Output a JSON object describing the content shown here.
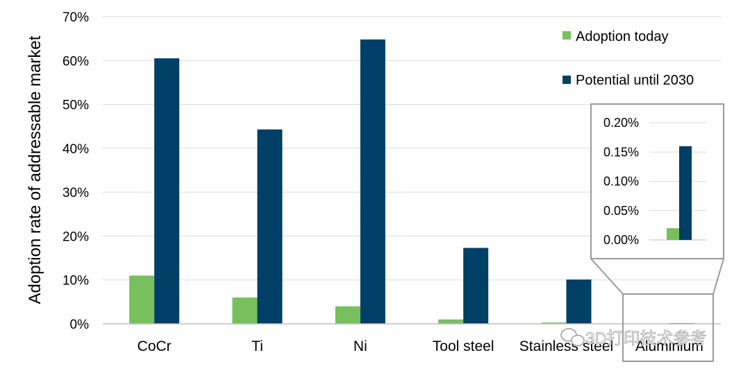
{
  "chart_data": {
    "type": "bar",
    "ylabel": "Adoption rate of addressable market",
    "xlabel": "",
    "ylim": [
      0,
      70
    ],
    "y_ticks": [
      "0%",
      "10%",
      "20%",
      "30%",
      "40%",
      "50%",
      "60%",
      "70%"
    ],
    "categories": [
      "CoCr",
      "Ti",
      "Ni",
      "Tool steel",
      "Stainless steel",
      "Aluminium"
    ],
    "series": [
      {
        "name": "Adoption today",
        "values": [
          11,
          6,
          4,
          1,
          0.3,
          0.02
        ],
        "color": "#77c05d"
      },
      {
        "name": "Potential until 2030",
        "values": [
          60.5,
          44.3,
          64.8,
          17.3,
          10.1,
          0.16
        ],
        "color": "#003f66"
      }
    ],
    "legend": "top-right",
    "grid": true,
    "inset": {
      "category": "Aluminium",
      "ylim": [
        0,
        0.2
      ],
      "y_ticks": [
        "0.00%",
        "0.05%",
        "0.10%",
        "0.15%",
        "0.20%"
      ],
      "values": {
        "Adoption today": 0.02,
        "Potential until 2030": 0.16
      }
    }
  },
  "watermark": {
    "text": "3D打印技术参考",
    "icon": "wechat-icon"
  }
}
